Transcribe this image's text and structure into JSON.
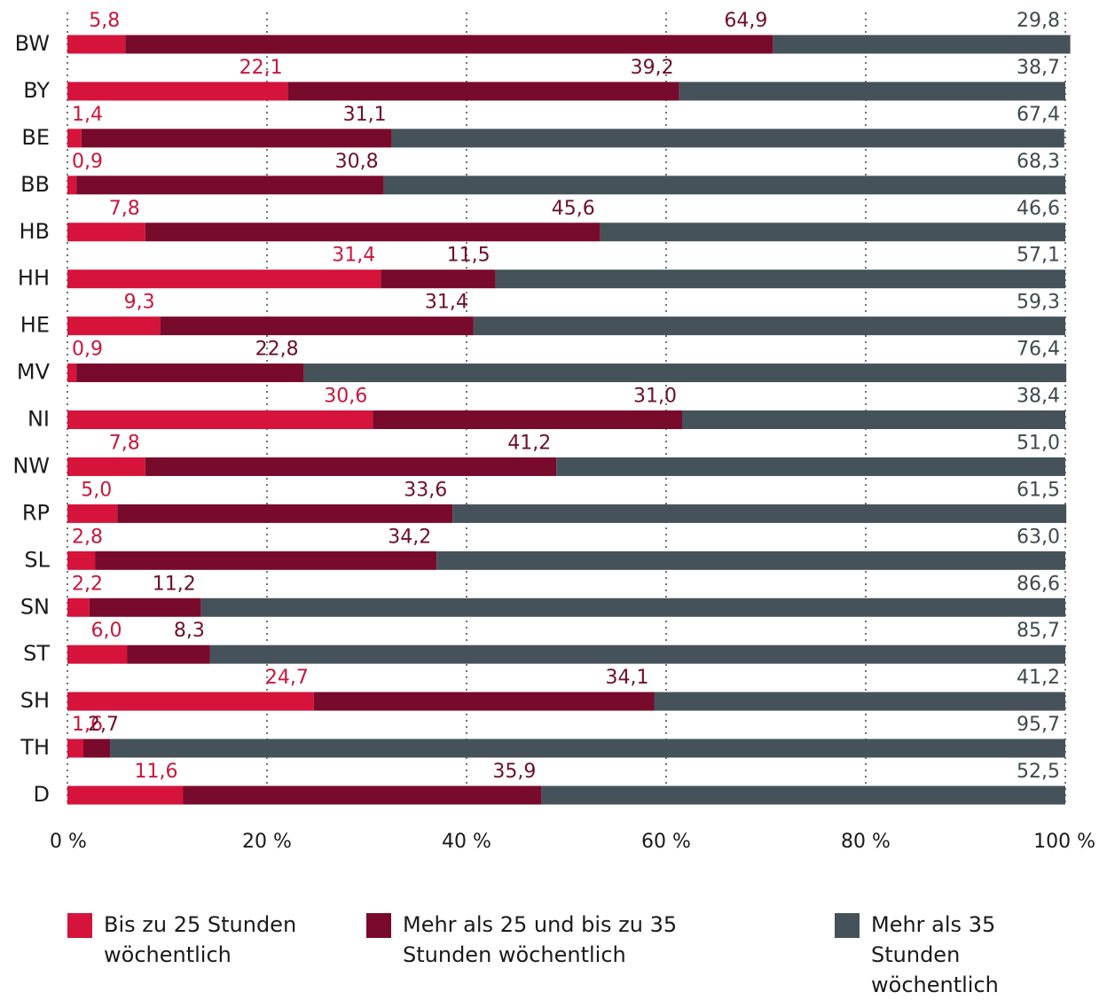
{
  "chart_data": {
    "type": "stacked_barh",
    "categories": [
      "BW",
      "BY",
      "BE",
      "BB",
      "HB",
      "HH",
      "HE",
      "MV",
      "NI",
      "NW",
      "RP",
      "SL",
      "SN",
      "ST",
      "SH",
      "TH",
      "D"
    ],
    "series": [
      {
        "name": "Bis zu 25 Stunden wöchentlich",
        "color": "#d5133b",
        "values": [
          5.8,
          22.1,
          1.4,
          0.9,
          7.8,
          31.4,
          9.3,
          0.9,
          30.6,
          7.8,
          5.0,
          2.8,
          2.2,
          6.0,
          24.7,
          1.6,
          11.6
        ],
        "value_labels": [
          "5,8",
          "22,1",
          "1,4",
          "0,9",
          "7,8",
          "31,4",
          "9,3",
          "0,9",
          "30,6",
          "7,8",
          "5,0",
          "2,8",
          "2,2",
          "6,0",
          "24,7",
          "1,6",
          "11,6"
        ]
      },
      {
        "name": "Mehr als 25 und bis zu 35 Stunden wöchentlich",
        "color": "#780a2b",
        "values": [
          64.9,
          39.2,
          31.1,
          30.8,
          45.6,
          11.5,
          31.4,
          22.8,
          31.0,
          41.2,
          33.6,
          34.2,
          11.2,
          8.3,
          34.1,
          2.7,
          35.9
        ],
        "value_labels": [
          "64,9",
          "39,2",
          "31,1",
          "30,8",
          "45,6",
          "11,5",
          "31,4",
          "22,8",
          "31,0",
          "41,2",
          "33,6",
          "34,2",
          "11,2",
          "8,3",
          "34,1",
          "2,7",
          "35,9"
        ]
      },
      {
        "name": "Mehr als 35 Stunden wöchentlich",
        "color": "#45525a",
        "values": [
          29.8,
          38.7,
          67.4,
          68.3,
          46.6,
          57.1,
          59.3,
          76.4,
          38.4,
          51.0,
          61.5,
          63.0,
          86.6,
          85.7,
          41.2,
          95.7,
          52.5
        ],
        "value_labels": [
          "29,8",
          "38,7",
          "67,4",
          "68,3",
          "46,6",
          "57,1",
          "59,3",
          "76,4",
          "38,4",
          "51,0",
          "61,5",
          "63,0",
          "86,6",
          "85,7",
          "41,2",
          "95,7",
          "52,5"
        ]
      }
    ],
    "xlim": [
      0,
      100
    ],
    "xticks": [
      {
        "value": 0,
        "label": "0 %"
      },
      {
        "value": 20,
        "label": "20 %"
      },
      {
        "value": 40,
        "label": "40 %"
      },
      {
        "value": 60,
        "label": "60 %"
      },
      {
        "value": 80,
        "label": "80 %"
      },
      {
        "value": 100,
        "label": "100 %"
      }
    ],
    "grid": true
  }
}
